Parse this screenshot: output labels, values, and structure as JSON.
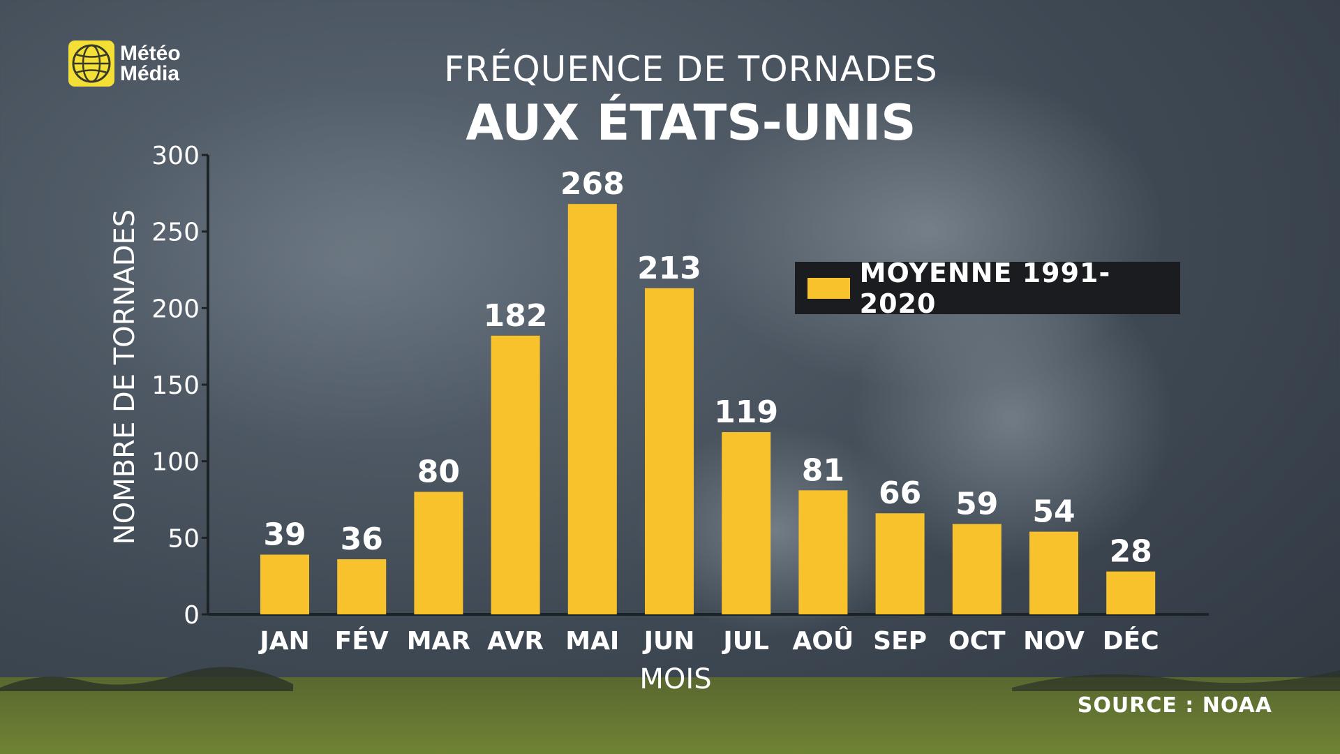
{
  "brand": {
    "name_line1": "Météo",
    "name_line2": "Média",
    "accent": "#f3df36"
  },
  "header": {
    "title_line1": "FRÉQUENCE DE TORNADES",
    "title_line2": "AUX ÉTATS-UNIS"
  },
  "legend": {
    "label": "MOYENNE  1991-2020"
  },
  "footer": {
    "source": "SOURCE : NOAA"
  },
  "chart_data": {
    "type": "bar",
    "categories": [
      "JAN",
      "FÉV",
      "MAR",
      "AVR",
      "MAI",
      "JUN",
      "JUL",
      "AOÛ",
      "SEP",
      "OCT",
      "NOV",
      "DÉC"
    ],
    "series": [
      {
        "name": "MOYENNE  1991-2020",
        "values": [
          39,
          36,
          80,
          182,
          268,
          213,
          119,
          81,
          66,
          59,
          54,
          28
        ],
        "color": "#f8c22c"
      }
    ],
    "title": "FRÉQUENCE DE TORNADES AUX ÉTATS-UNIS",
    "xlabel": "MOIS",
    "ylabel": "NOMBRE DE TORNADES",
    "ylim": [
      0,
      300
    ],
    "yticks": [
      0,
      50,
      100,
      150,
      200,
      250,
      300
    ],
    "grid": false,
    "legend_position": "top-right"
  }
}
